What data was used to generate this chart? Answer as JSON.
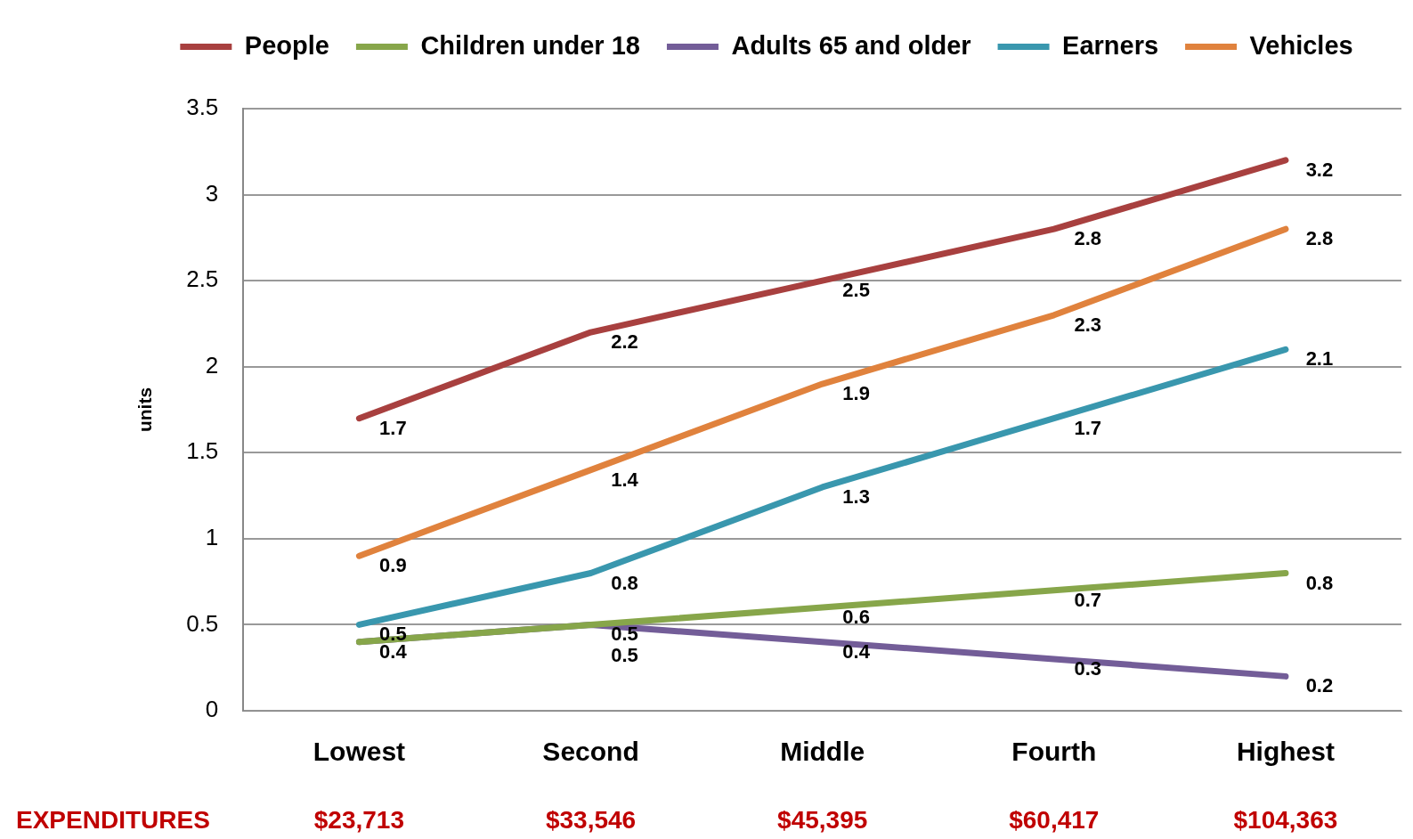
{
  "chart_data": {
    "type": "line",
    "ylabel": "units",
    "categories": [
      "Lowest",
      "Second",
      "Middle",
      "Fourth",
      "Highest"
    ],
    "series": [
      {
        "name": "People",
        "color": "#a8403f",
        "values": [
          1.7,
          2.2,
          2.5,
          2.8,
          3.2
        ],
        "value_labels": [
          "1.7",
          "2.2",
          "2.5",
          "2.8",
          "3.2"
        ]
      },
      {
        "name": "Children under 18",
        "color": "#87a64a",
        "values": [
          0.4,
          0.5,
          0.6,
          0.7,
          0.8
        ],
        "value_labels": [
          null,
          "0.5",
          "0.6",
          "0.7",
          "0.8"
        ]
      },
      {
        "name": "Adults 65 and older",
        "color": "#735d98",
        "values": [
          0.4,
          0.5,
          0.4,
          0.3,
          0.2
        ],
        "value_labels": [
          "0.4",
          "0.5",
          "0.4",
          "0.3",
          "0.2"
        ]
      },
      {
        "name": "Earners",
        "color": "#3997ae",
        "values": [
          0.5,
          0.8,
          1.3,
          1.7,
          2.1
        ],
        "value_labels": [
          "0.5",
          "0.8",
          "1.3",
          "1.7",
          "2.1"
        ]
      },
      {
        "name": "Vehicles",
        "color": "#e0823d",
        "values": [
          0.9,
          1.4,
          1.9,
          2.3,
          2.8
        ],
        "value_labels": [
          "0.9",
          "1.4",
          "1.9",
          "2.3",
          "2.8"
        ]
      }
    ],
    "ylim": [
      0,
      3.5
    ],
    "yticks": [
      0,
      0.5,
      1,
      1.5,
      2,
      2.5,
      3,
      3.5
    ],
    "grid": "y",
    "legend": "top",
    "marker": "none",
    "line_style": "solid",
    "annotations": [
      "EXPENDITURES",
      "$23,713",
      "$33,546",
      "$45,395",
      "$60,417",
      "$104,363"
    ]
  }
}
